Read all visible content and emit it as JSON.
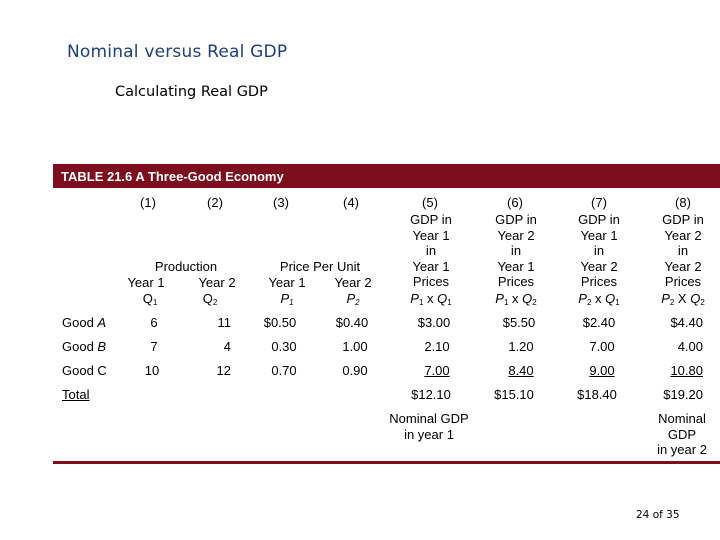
{
  "slide": {
    "title": "Nominal versus Real GDP",
    "subtitle": "Calculating Real GDP",
    "page": "24 of 35"
  },
  "table": {
    "caption": "TABLE 21.6  A Three-Good Economy",
    "column_numbers": [
      "(1)",
      "(2)",
      "(3)",
      "(4)",
      "(5)",
      "(6)",
      "(7)",
      "(8)"
    ],
    "production_header": "Production",
    "price_header": "Price Per Unit",
    "year1": "Year 1",
    "year2": "Year 2",
    "q1_label": "Q",
    "q2_label": "Q",
    "p1_label": "P",
    "p2_label": "P",
    "sub1": "1",
    "sub2": "2",
    "gdp_headers": [
      "GDP in\nYear 1\nin\nYear 1\nPrices",
      "GDP in\nYear 2\nin\nYear 1\nPrices",
      "GDP in\nYear 1\nin\nYear 2\nPrices",
      "GDP in\nYear 2\nin\nYear 2\nPrices"
    ],
    "gdp_formulas": [
      {
        "a": "P",
        "as": "1",
        "op": " x ",
        "b": "Q",
        "bs": "1"
      },
      {
        "a": "P",
        "as": "1",
        "op": " x ",
        "b": "Q",
        "bs": "2"
      },
      {
        "a": "P",
        "as": "2",
        "op": " x ",
        "b": "Q",
        "bs": "1"
      },
      {
        "a": "P",
        "as": "2",
        "op": " X ",
        "b": "Q",
        "bs": "2"
      }
    ],
    "rows": [
      {
        "good_prefix": "Good ",
        "good_letter": "A",
        "q1": "6",
        "q2": "11",
        "p1": "$0.50",
        "p2": "$0.40",
        "c5": "$3.00",
        "c6": "$5.50",
        "c7": "$2.40",
        "c8": "$4.40"
      },
      {
        "good_prefix": "Good ",
        "good_letter": "B",
        "q1": "7",
        "q2": "4",
        "p1": "0.30",
        "p2": "1.00",
        "c5": "2.10",
        "c6": "1.20",
        "c7": "7.00",
        "c8": "4.00"
      },
      {
        "good_prefix": "Good C",
        "good_letter": "",
        "q1": "10",
        "q2": "12",
        "p1": "0.70",
        "p2": "0.90",
        "c5": "7.00",
        "c6": "8.40",
        "c7": "9.00",
        "c8": "10.80"
      }
    ],
    "total_label": "Total",
    "totals": {
      "c5": "$12.10",
      "c6": "$15.10",
      "c7": "$18.40",
      "c8": "$19.20"
    },
    "note_nominal_1": "Nominal GDP\nin year 1",
    "note_nominal_2": "Nominal\nGDP\nin year 2"
  }
}
